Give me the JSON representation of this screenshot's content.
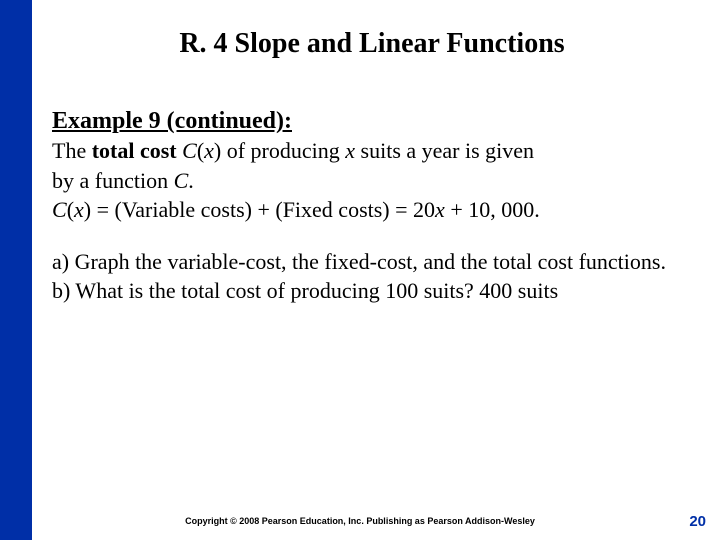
{
  "colors": {
    "left_bar": "#002fa7",
    "page_number": "#002fa7",
    "text": "#000000",
    "background": "#ffffff"
  },
  "title": "R. 4 Slope and Linear Functions",
  "heading": "Example 9 (continued):",
  "body": {
    "line1_pre": "The ",
    "line1_bold": "total cost ",
    "line1_cx_C": "C",
    "line1_cx_paren_open": "(",
    "line1_cx_x": "x",
    "line1_cx_paren_close": ") ",
    "line1_mid": "of producing ",
    "line1_x2": "x",
    "line1_post": " suits a year is given",
    "line2_pre": "by a function ",
    "line2_C": "C",
    "line2_post": ".",
    "line3_sp": " ",
    "line3_C": "C",
    "line3_po": "(",
    "line3_x": "x",
    "line3_pc": ") = (Variable costs) + (Fixed costs) = 20",
    "line3_x2": "x",
    "line3_end": " + 10, 000."
  },
  "questions": {
    "a": "a) Graph the variable-cost, the fixed-cost, and the total cost functions.",
    "b": "b) What is the total cost of producing 100 suits?  400 suits"
  },
  "copyright": "Copyright © 2008 Pearson Education, Inc.  Publishing as Pearson Addison-Wesley",
  "page_number": "20"
}
